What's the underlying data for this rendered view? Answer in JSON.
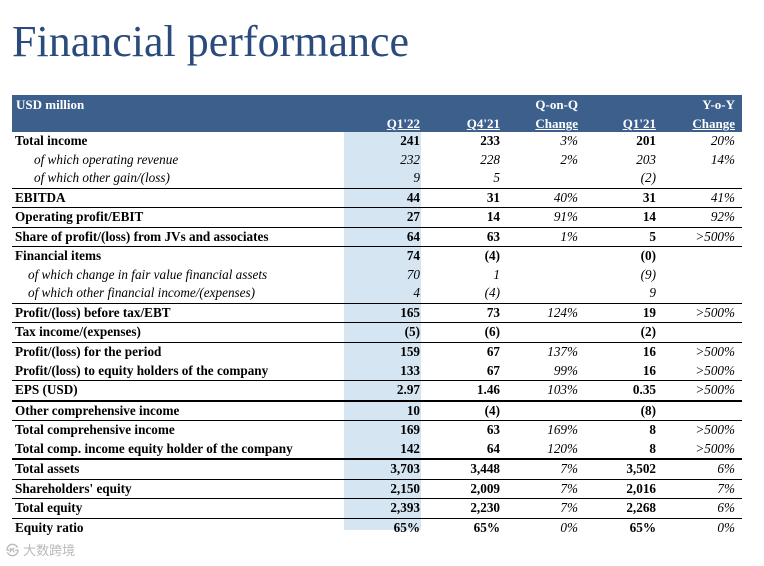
{
  "title": "Financial performance",
  "header": {
    "unit": "USD million",
    "q1_22": "Q1'22",
    "q4_21": "Q4'21",
    "qoq_top": "Q-on-Q",
    "qoq_bottom": "Change",
    "q1_21": "Q1'21",
    "yoy_top": "Y-o-Y",
    "yoy_bottom": "Change"
  },
  "rows": [
    {
      "label": "Total income",
      "q1_22": "241",
      "q4_21": "233",
      "qoq": "3%",
      "q1_21": "201",
      "yoy": "20%"
    },
    {
      "label": "of which operating revenue",
      "q1_22": "232",
      "q4_21": "228",
      "qoq": "2%",
      "q1_21": "203",
      "yoy": "14%"
    },
    {
      "label": "of which other gain/(loss)",
      "q1_22": "9",
      "q4_21": "5",
      "qoq": "",
      "q1_21": "(2)",
      "yoy": ""
    },
    {
      "label": "EBITDA",
      "q1_22": "44",
      "q4_21": "31",
      "qoq": "40%",
      "q1_21": "31",
      "yoy": "41%"
    },
    {
      "label": "Operating profit/EBIT",
      "q1_22": "27",
      "q4_21": "14",
      "qoq": "91%",
      "q1_21": "14",
      "yoy": "92%"
    },
    {
      "label": "Share of profit/(loss) from JVs and associates",
      "q1_22": "64",
      "q4_21": "63",
      "qoq": "1%",
      "q1_21": "5",
      "yoy": ">500%"
    },
    {
      "label": "Financial items",
      "q1_22": "74",
      "q4_21": "(4)",
      "qoq": "",
      "q1_21": "(0)",
      "yoy": ""
    },
    {
      "label": "of which change in fair value financial assets",
      "q1_22": "70",
      "q4_21": "1",
      "qoq": "",
      "q1_21": "(9)",
      "yoy": ""
    },
    {
      "label": "of which other financial income/(expenses)",
      "q1_22": "4",
      "q4_21": "(4)",
      "qoq": "",
      "q1_21": "9",
      "yoy": ""
    },
    {
      "label": "Profit/(loss) before tax/EBT",
      "q1_22": "165",
      "q4_21": "73",
      "qoq": "124%",
      "q1_21": "19",
      "yoy": ">500%"
    },
    {
      "label": "Tax income/(expenses)",
      "q1_22": "(5)",
      "q4_21": "(6)",
      "qoq": "",
      "q1_21": "(2)",
      "yoy": ""
    },
    {
      "label": "Profit/(loss) for the period",
      "q1_22": "159",
      "q4_21": "67",
      "qoq": "137%",
      "q1_21": "16",
      "yoy": ">500%"
    },
    {
      "label": "Profit/(loss) to equity holders of the company",
      "q1_22": "133",
      "q4_21": "67",
      "qoq": "99%",
      "q1_21": "16",
      "yoy": ">500%"
    },
    {
      "label": "EPS (USD)",
      "q1_22": "2.97",
      "q4_21": "1.46",
      "qoq": "103%",
      "q1_21": "0.35",
      "yoy": ">500%"
    },
    {
      "label": "Other comprehensive income",
      "q1_22": "10",
      "q4_21": "(4)",
      "qoq": "",
      "q1_21": "(8)",
      "yoy": ""
    },
    {
      "label": "Total comprehensive income",
      "q1_22": "169",
      "q4_21": "63",
      "qoq": "169%",
      "q1_21": "8",
      "yoy": ">500%"
    },
    {
      "label": "Total comp. income equity holder of the company",
      "q1_22": "142",
      "q4_21": "64",
      "qoq": "120%",
      "q1_21": "8",
      "yoy": ">500%"
    },
    {
      "label": "Total assets",
      "q1_22": "3,703",
      "q4_21": "3,448",
      "qoq": "7%",
      "q1_21": "3,502",
      "yoy": "6%"
    },
    {
      "label": "Shareholders' equity",
      "q1_22": "2,150",
      "q4_21": "2,009",
      "qoq": "7%",
      "q1_21": "2,016",
      "yoy": "7%"
    },
    {
      "label": "Total equity",
      "q1_22": "2,393",
      "q4_21": "2,230",
      "qoq": "7%",
      "q1_21": "2,268",
      "yoy": "6%"
    },
    {
      "label": "Equity ratio",
      "q1_22": "65%",
      "q4_21": "65%",
      "qoq": "0%",
      "q1_21": "65%",
      "yoy": "0%"
    }
  ],
  "watermark": "大数跨境"
}
